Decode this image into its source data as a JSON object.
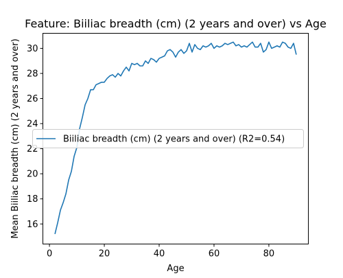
{
  "chart_data": {
    "type": "line",
    "title": "Feature: Biiliac breadth (cm) (2 years and over) vs Age",
    "xlabel": "Age",
    "ylabel": "Mean Biiliac breadth (cm) (2 years and over)",
    "xlim": [
      -2.4,
      94.4
    ],
    "ylim": [
      14.4,
      31.2
    ],
    "xticks": [
      0,
      20,
      40,
      60,
      80
    ],
    "yticks": [
      16,
      18,
      20,
      22,
      24,
      26,
      28,
      30
    ],
    "grid": false,
    "legend_position": "center-left",
    "series": [
      {
        "name": "Biiliac breadth (cm) (2 years and over) (R2=0.54)",
        "color": "#1f77b4",
        "x": [
          2,
          3,
          4,
          5,
          6,
          7,
          8,
          9,
          10,
          11,
          12,
          13,
          14,
          15,
          16,
          17,
          18,
          19,
          20,
          21,
          22,
          23,
          24,
          25,
          26,
          27,
          28,
          29,
          30,
          31,
          32,
          33,
          34,
          35,
          36,
          37,
          38,
          39,
          40,
          41,
          42,
          43,
          44,
          45,
          46,
          47,
          48,
          49,
          50,
          51,
          52,
          53,
          54,
          55,
          56,
          57,
          58,
          59,
          60,
          61,
          62,
          63,
          64,
          65,
          66,
          67,
          68,
          69,
          70,
          71,
          72,
          73,
          74,
          75,
          76,
          77,
          78,
          79,
          80,
          81,
          82,
          83,
          84,
          85,
          86,
          87,
          88,
          89,
          90
        ],
        "y": [
          15.2,
          16.1,
          17.1,
          17.7,
          18.4,
          19.5,
          20.2,
          21.4,
          22.1,
          23.6,
          24.5,
          25.5,
          26.0,
          26.7,
          26.7,
          27.1,
          27.2,
          27.3,
          27.3,
          27.6,
          27.8,
          27.9,
          27.7,
          28.0,
          27.8,
          28.2,
          28.5,
          28.2,
          28.8,
          28.7,
          28.8,
          28.6,
          28.6,
          29.0,
          28.8,
          29.2,
          29.1,
          28.9,
          29.2,
          29.3,
          29.4,
          29.8,
          29.9,
          29.7,
          29.3,
          29.7,
          29.9,
          29.6,
          29.8,
          30.4,
          29.7,
          30.3,
          30.0,
          29.9,
          30.2,
          30.1,
          30.2,
          30.4,
          30.0,
          30.2,
          30.1,
          30.2,
          30.4,
          30.3,
          30.4,
          30.5,
          30.2,
          30.3,
          30.1,
          30.2,
          30.1,
          30.3,
          30.5,
          30.1,
          30.1,
          30.4,
          29.7,
          29.9,
          30.5,
          30.0,
          30.1,
          30.2,
          30.1,
          30.5,
          30.4,
          30.1,
          30.0,
          30.4,
          29.5
        ]
      }
    ]
  }
}
